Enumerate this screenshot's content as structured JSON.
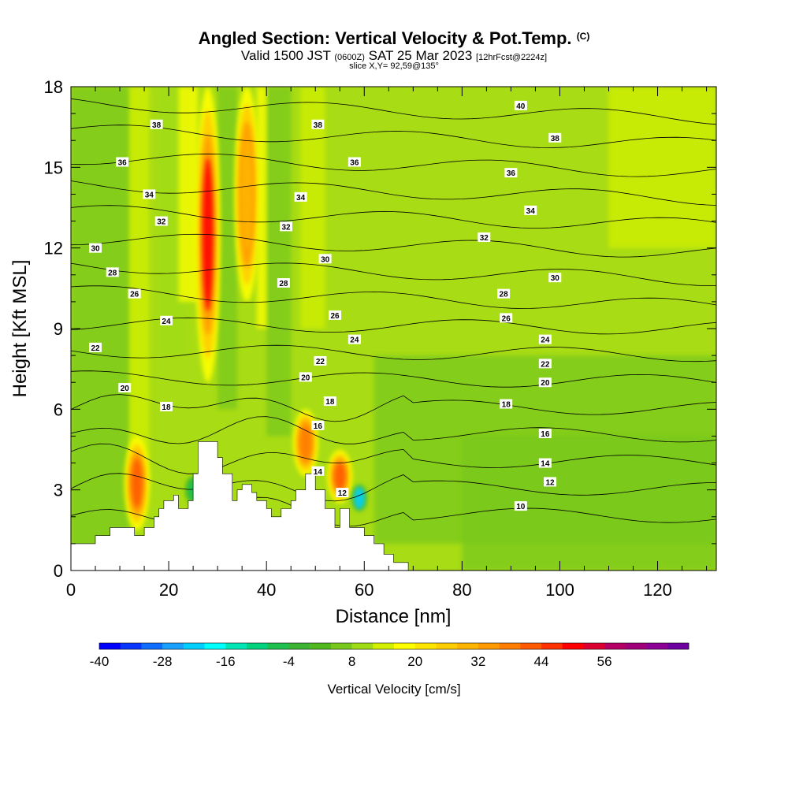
{
  "header": {
    "title": "Angled Section: Vertical Velocity & Pot.Temp.",
    "title_unit": "(C)",
    "valid_prefix": "Valid 1500 JST",
    "valid_utc": "(0600Z)",
    "valid_date": "SAT 25 Mar 2023",
    "forecast": "[12hrFcst@2224z]",
    "slice": "slice X,Y= 92,59@135°"
  },
  "chart_data": {
    "type": "heatmap",
    "title": "Angled Section: Vertical Velocity & Pot.Temp.",
    "xlabel": "Distance [nm]",
    "ylabel": "Height [Kft MSL]",
    "xlim": [
      0,
      132
    ],
    "ylim": [
      0,
      18
    ],
    "xticks": [
      "0",
      "20",
      "40",
      "60",
      "80",
      "100",
      "120"
    ],
    "yticks": [
      "0",
      "3",
      "6",
      "9",
      "12",
      "15",
      "18"
    ],
    "grid": false,
    "fill_variable": "Vertical Velocity [cm/s]",
    "colorbar": {
      "title": "Vertical Velocity [cm/s]",
      "ticks": [
        "-40",
        "-28",
        "-16",
        "-4",
        "8",
        "20",
        "32",
        "44",
        "56"
      ],
      "levels": [
        -40,
        -36,
        -32,
        -28,
        -24,
        -20,
        -16,
        -12,
        -8,
        -4,
        0,
        4,
        8,
        12,
        16,
        20,
        24,
        28,
        32,
        36,
        40,
        44,
        48,
        52,
        56,
        60
      ],
      "colors": [
        "#0000ff",
        "#0a37ff",
        "#0f6eff",
        "#1aa0ff",
        "#00d0ff",
        "#00ffff",
        "#00e6b4",
        "#00d27d",
        "#1ec050",
        "#3cb432",
        "#50b91e",
        "#78c81e",
        "#a0dc14",
        "#d2f000",
        "#ffff00",
        "#ffe600",
        "#ffcd00",
        "#ffb400",
        "#ff9b00",
        "#ff7d00",
        "#ff5a00",
        "#ff3200",
        "#ff0000",
        "#dc0032",
        "#b40064",
        "#a00078",
        "#8c0096",
        "#6e00a0"
      ]
    },
    "terrain_profile": {
      "x": [
        0,
        5,
        5,
        8,
        8,
        10,
        10,
        13,
        13,
        15,
        15,
        17,
        17,
        18,
        18,
        19,
        19,
        21,
        21,
        22,
        22,
        24,
        24,
        25,
        25,
        26,
        26,
        28,
        28,
        30,
        30,
        31,
        31,
        33,
        33,
        34,
        34,
        35,
        35,
        37,
        37,
        38,
        38,
        40,
        40,
        41,
        41,
        43,
        43,
        45,
        45,
        46,
        46,
        48,
        48,
        50,
        50,
        52,
        52,
        54,
        54,
        55,
        55,
        57,
        57,
        60,
        60,
        62,
        62,
        64,
        64,
        66,
        66,
        69,
        69,
        72,
        132
      ],
      "y": [
        1.0,
        1.0,
        1.3,
        1.3,
        1.6,
        1.6,
        1.6,
        1.6,
        1.3,
        1.3,
        1.6,
        1.6,
        2.0,
        2.0,
        2.3,
        2.3,
        2.6,
        2.6,
        2.8,
        2.8,
        2.3,
        2.3,
        2.6,
        2.6,
        3.6,
        3.6,
        4.8,
        4.8,
        4.8,
        4.8,
        4.2,
        4.2,
        3.6,
        3.6,
        2.6,
        2.6,
        3.0,
        3.0,
        3.2,
        3.2,
        2.9,
        2.9,
        2.6,
        2.6,
        2.3,
        2.3,
        2.0,
        2.0,
        2.3,
        2.3,
        2.6,
        2.6,
        3.0,
        3.0,
        3.6,
        3.6,
        3.0,
        3.0,
        2.3,
        2.3,
        1.6,
        1.6,
        2.3,
        2.3,
        1.6,
        1.6,
        1.3,
        1.3,
        1.0,
        1.0,
        0.6,
        0.6,
        0.3,
        0.3,
        0.0,
        0.0,
        0.0
      ]
    },
    "updraft_cores_cm_s": [
      {
        "x": 13.5,
        "y_bottom": 1.5,
        "y_top": 5.0,
        "value": 36
      },
      {
        "x": 28,
        "y_bottom": 7.0,
        "y_top": 18.0,
        "value": 44
      },
      {
        "x": 48,
        "y_bottom": 3.5,
        "y_top": 6.0,
        "value": 32
      },
      {
        "x": 55,
        "y_bottom": 2.5,
        "y_top": 4.5,
        "value": 36
      },
      {
        "x": 36,
        "y_bottom": 10.0,
        "y_top": 18.0,
        "value": 24
      }
    ],
    "downdraft_cores_cm_s": [
      {
        "x": 59,
        "y_bottom": 2.2,
        "y_top": 3.2,
        "value": -28
      },
      {
        "x": 25,
        "y_bottom": 2.5,
        "y_top": 3.5,
        "value": -12
      }
    ],
    "theta_contours": [
      {
        "value": "10",
        "label_x": 92,
        "label_y": 2.4
      },
      {
        "value": "12",
        "label_x": 55.5,
        "label_y": 2.9,
        "label_x2": 98,
        "label_y2": 3.3
      },
      {
        "value": "14",
        "label_x": 50.5,
        "label_y": 3.7,
        "label_x2": 97,
        "label_y2": 4.0
      },
      {
        "value": "16",
        "label_x": 50.5,
        "label_y": 5.4,
        "label_x2": 97,
        "label_y2": 5.1
      },
      {
        "value": "18",
        "label_x": 19.5,
        "label_y": 6.1,
        "label_x2": 53,
        "label_y2": 6.3,
        "label_x3": 89,
        "label_y3": 6.2
      },
      {
        "value": "20",
        "label_x": 11,
        "label_y": 6.8,
        "label_x2": 48,
        "label_y2": 7.2,
        "label_x3": 97,
        "label_y3": 7.0
      },
      {
        "value": "22",
        "label_x": 5,
        "label_y": 8.3,
        "label_x2": 51,
        "label_y2": 7.8,
        "label_x3": 97,
        "label_y3": 7.7
      },
      {
        "value": "24",
        "label_x": 19.5,
        "label_y": 9.3,
        "label_x2": 58,
        "label_y2": 8.6,
        "label_x3": 97,
        "label_y3": 8.6
      },
      {
        "value": "26",
        "label_x": 13,
        "label_y": 10.3,
        "label_x2": 54,
        "label_y2": 9.5,
        "label_x3": 89,
        "label_y3": 9.4
      },
      {
        "value": "28",
        "label_x": 8.5,
        "label_y": 11.1,
        "label_x2": 43.5,
        "label_y2": 10.7,
        "label_x3": 88.5,
        "label_y3": 10.3
      },
      {
        "value": "30",
        "label_x": 5,
        "label_y": 12.0,
        "label_x2": 52,
        "label_y2": 11.6,
        "label_x3": 99,
        "label_y3": 10.9
      },
      {
        "value": "32",
        "label_x": 18.5,
        "label_y": 13.0,
        "label_x2": 44,
        "label_y2": 12.8,
        "label_x3": 84.5,
        "label_y3": 12.4
      },
      {
        "value": "34",
        "label_x": 16,
        "label_y": 14.0,
        "label_x2": 47,
        "label_y2": 13.9,
        "label_x3": 94,
        "label_y3": 13.4
      },
      {
        "value": "36",
        "label_x": 10.5,
        "label_y": 15.2,
        "label_x2": 58,
        "label_y2": 15.2,
        "label_x3": 90,
        "label_y3": 14.8
      },
      {
        "value": "38",
        "label_x": 17.5,
        "label_y": 16.6,
        "label_x2": 50.5,
        "label_y2": 16.6,
        "label_x3": 99,
        "label_y3": 16.1
      },
      {
        "value": "40",
        "label_x": 92,
        "label_y": 17.3
      }
    ]
  }
}
